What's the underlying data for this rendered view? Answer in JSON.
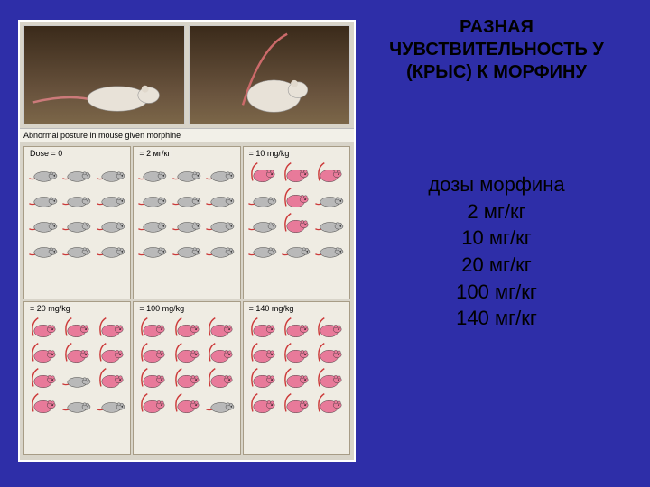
{
  "title_line1": "РАЗНАЯ",
  "title_line2": "ЧУВСТВИТЕЛЬНОСТЬ У",
  "title_line3": "(КРЫС) К МОРФИНУ",
  "doses_header": "дозы морфина",
  "doses": [
    "2 мг/кг",
    "10 мг/кг",
    "20 мг/кг",
    "100 мг/кг",
    "140 мг/кг"
  ],
  "figure": {
    "caption": "Abnormal posture in mouse given morphine",
    "background_color": "#d8d4c9",
    "cell_bg": "#efece3",
    "cell_border": "#a79c86",
    "colors": {
      "normal": "#b9b9b9",
      "affected": "#e87a9a",
      "tail": "#cc3a3a",
      "outline": "#333333"
    },
    "cells": [
      {
        "label": "Dose = 0",
        "mice": [
          0,
          0,
          0,
          0,
          0,
          0,
          0,
          0,
          0,
          0,
          0,
          0
        ]
      },
      {
        "label": "= 2 мг/кг",
        "mice": [
          0,
          0,
          0,
          0,
          0,
          0,
          0,
          0,
          0,
          0,
          0,
          0
        ]
      },
      {
        "label": "= 10 mg/kg",
        "mice": [
          1,
          1,
          1,
          0,
          1,
          0,
          0,
          1,
          0,
          0,
          0,
          0
        ]
      },
      {
        "label": "= 20 mg/kg",
        "mice": [
          1,
          1,
          1,
          1,
          1,
          1,
          1,
          0,
          1,
          1,
          0,
          0
        ]
      },
      {
        "label": "= 100 mg/kg",
        "mice": [
          1,
          1,
          1,
          1,
          1,
          1,
          1,
          1,
          1,
          1,
          1,
          0
        ]
      },
      {
        "label": "= 140 mg/kg",
        "mice": [
          1,
          1,
          1,
          1,
          1,
          1,
          1,
          1,
          1,
          1,
          1,
          1
        ]
      }
    ]
  },
  "slide_bg": "#2e2ea8"
}
